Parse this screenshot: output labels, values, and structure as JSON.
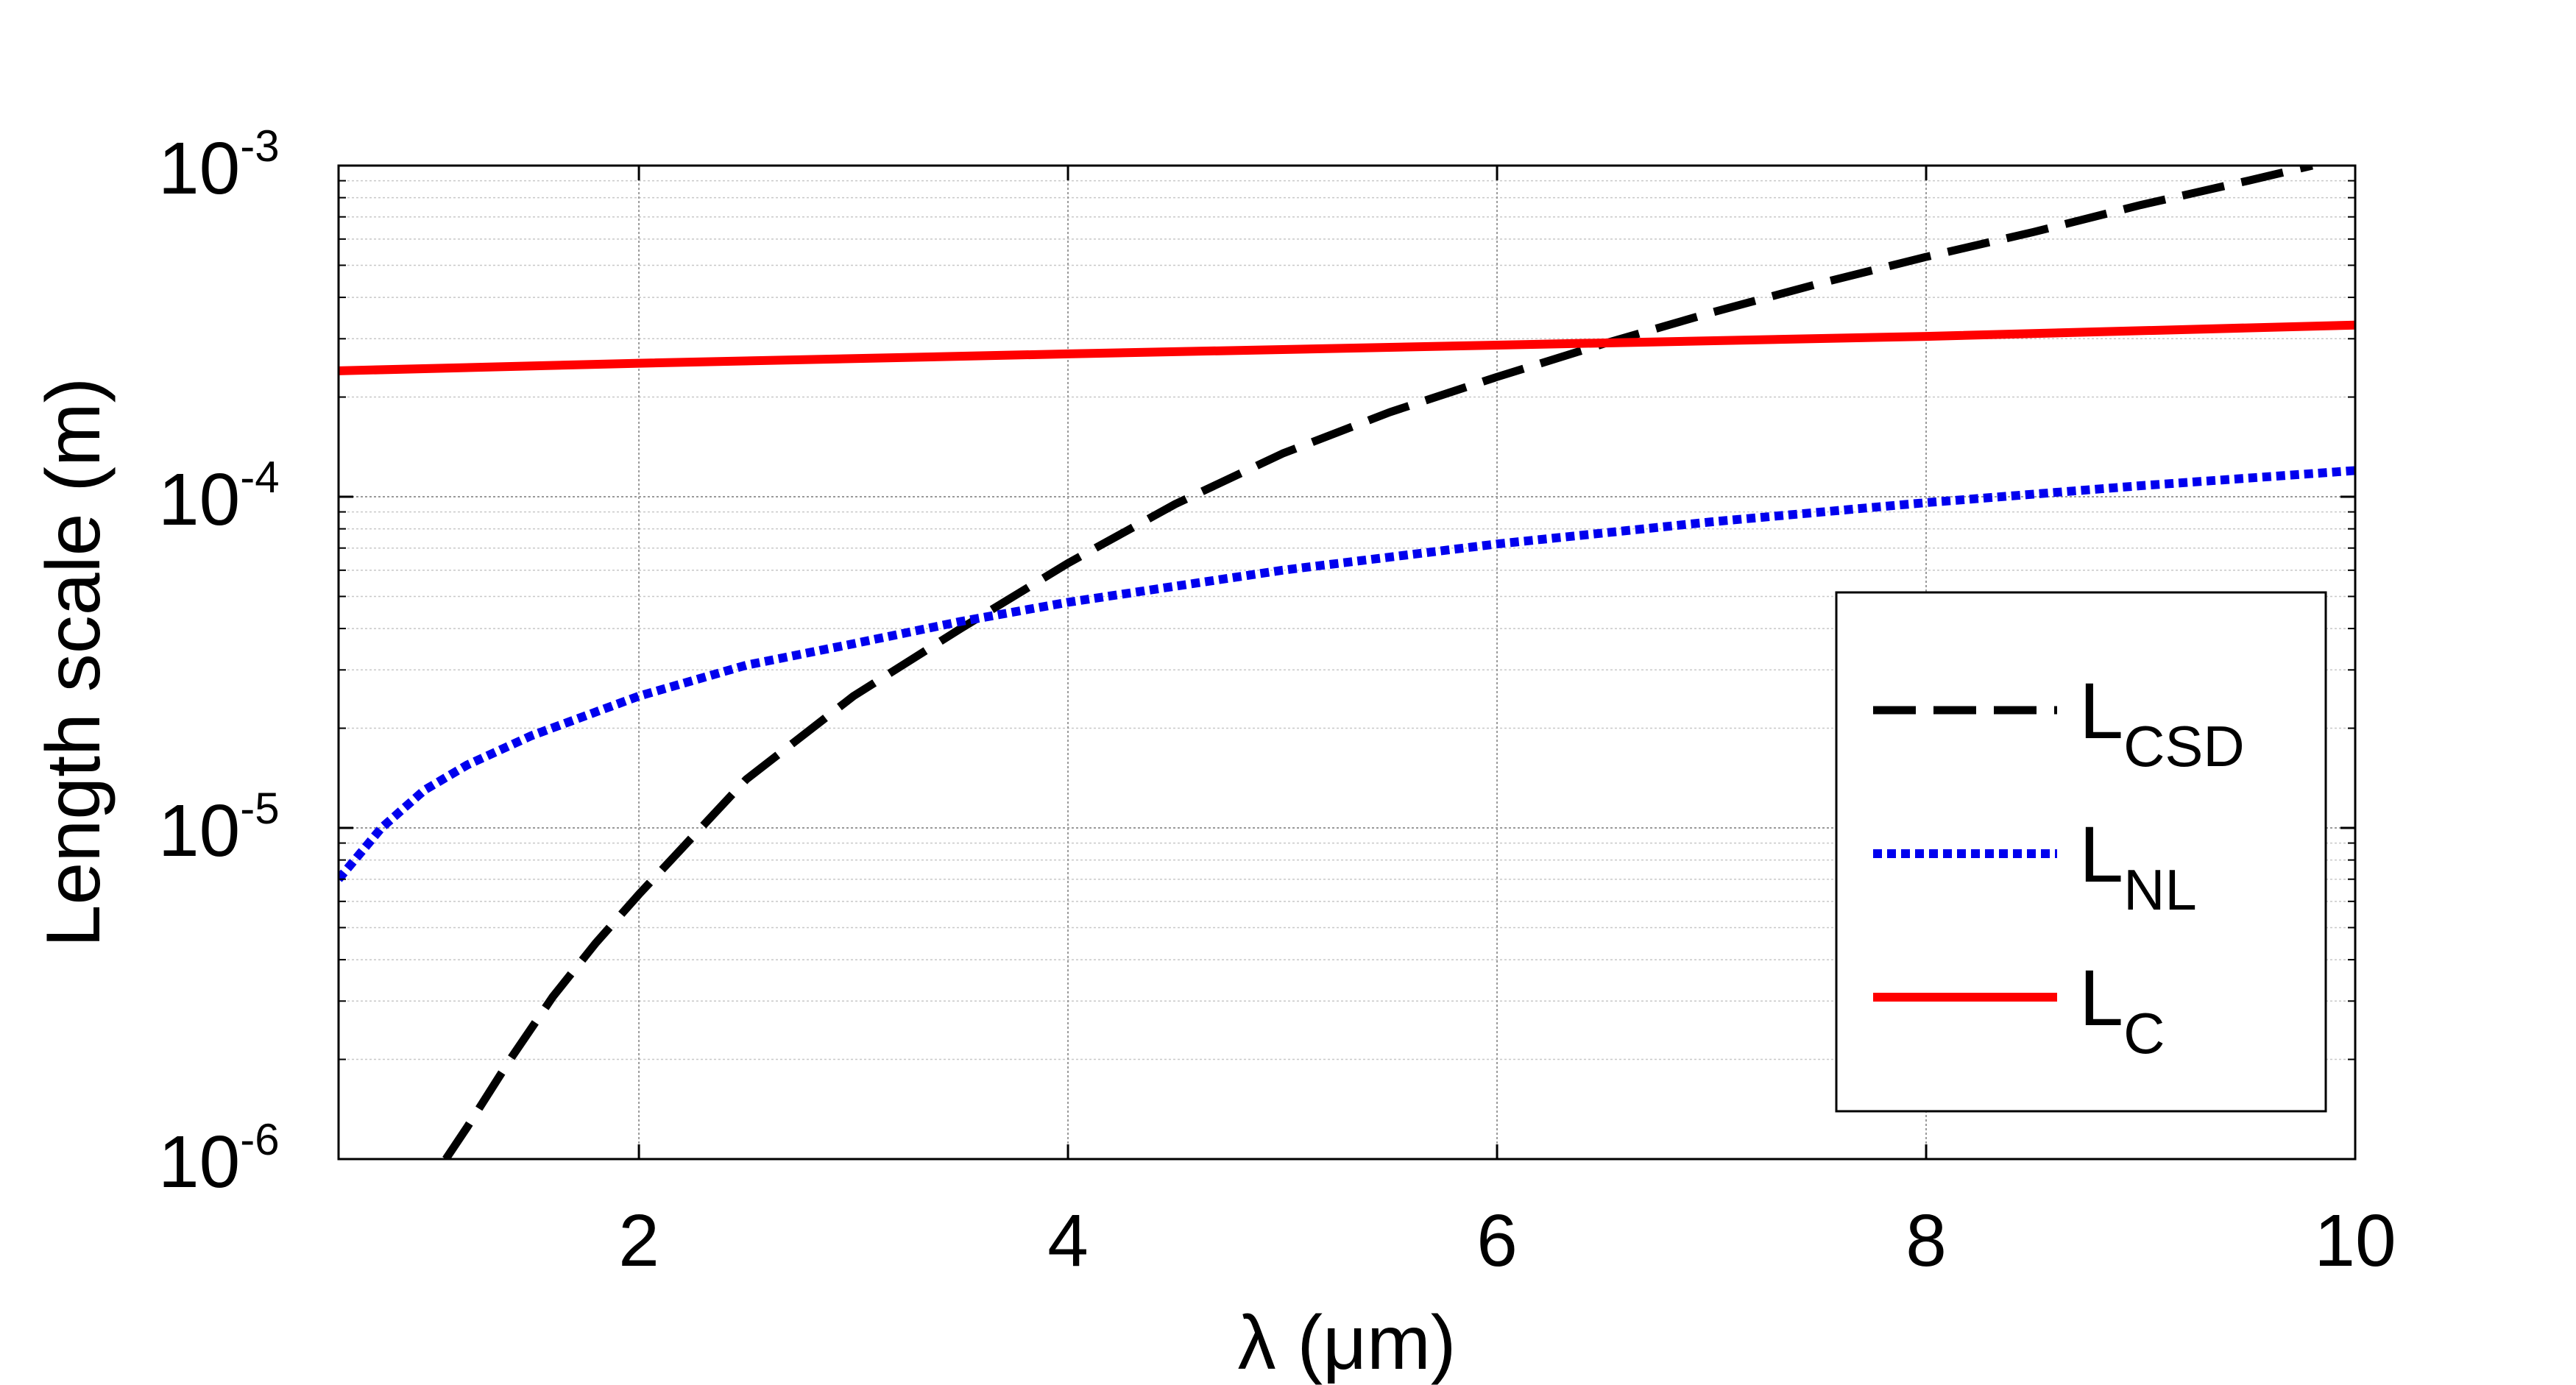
{
  "chart_data": {
    "type": "line",
    "xlabel": "λ (μm)",
    "ylabel": "Length scale (m)",
    "xlim": [
      0.6,
      10
    ],
    "ylim": [
      1e-06,
      0.001
    ],
    "yscale": "log",
    "grid": true,
    "legend_position": "bottom-right",
    "x_ticks": [
      {
        "value": 2,
        "label": "2"
      },
      {
        "value": 4,
        "label": "4"
      },
      {
        "value": 6,
        "label": "6"
      },
      {
        "value": 8,
        "label": "8"
      },
      {
        "value": 10,
        "label": "10"
      }
    ],
    "y_ticks": [
      {
        "value": 1e-06,
        "base": "10",
        "exponent": "-6"
      },
      {
        "value": 1e-05,
        "base": "10",
        "exponent": "-5"
      },
      {
        "value": 0.0001,
        "base": "10",
        "exponent": "-4"
      },
      {
        "value": 0.001,
        "base": "10",
        "exponent": "-3"
      }
    ],
    "series": [
      {
        "name": "L",
        "sub": "CSD",
        "color": "#000000",
        "dash": "dashed",
        "x": [
          1.1,
          1.2,
          1.4,
          1.6,
          1.8,
          2.0,
          2.5,
          3.0,
          3.5,
          4.0,
          4.5,
          5.0,
          5.5,
          6.0,
          6.5,
          7.0,
          7.5,
          8.0,
          8.5,
          9.0,
          9.5,
          9.8
        ],
        "y": [
          1e-06,
          1.25e-06,
          2e-06,
          3.1e-06,
          4.5e-06,
          6.3e-06,
          1.4e-05,
          2.5e-05,
          4e-05,
          6.3e-05,
          9.5e-05,
          0.000135,
          0.00018,
          0.00023,
          0.00029,
          0.00036,
          0.00044,
          0.00053,
          0.00063,
          0.00076,
          0.0009,
          0.001
        ]
      },
      {
        "name": "L",
        "sub": "NL",
        "color": "#0000ee",
        "dash": "dotted",
        "x": [
          0.6,
          0.8,
          1.0,
          1.2,
          1.5,
          2.0,
          2.5,
          3.0,
          3.5,
          4.0,
          5.0,
          6.0,
          7.0,
          8.0,
          9.0,
          10.0
        ],
        "y": [
          7e-06,
          1e-05,
          1.3e-05,
          1.55e-05,
          1.9e-05,
          2.5e-05,
          3.1e-05,
          3.6e-05,
          4.2e-05,
          4.8e-05,
          6e-05,
          7.2e-05,
          8.4e-05,
          9.6e-05,
          0.000108,
          0.00012
        ]
      },
      {
        "name": "L",
        "sub": "C",
        "color": "#ff0000",
        "dash": "solid",
        "x": [
          0.6,
          2.0,
          4.0,
          6.0,
          8.0,
          10.0
        ],
        "y": [
          0.00024,
          0.000253,
          0.00027,
          0.000287,
          0.000305,
          0.00033
        ]
      }
    ]
  }
}
